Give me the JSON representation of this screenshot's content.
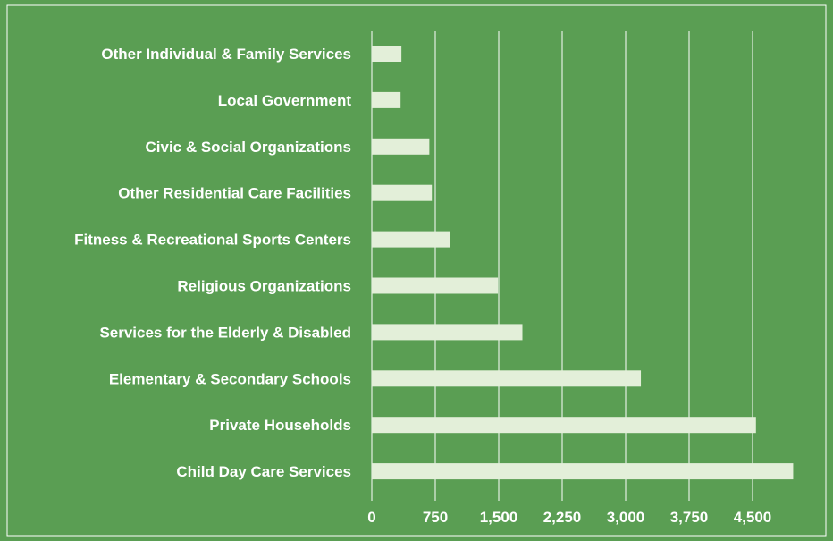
{
  "chart_data": {
    "type": "bar",
    "orientation": "horizontal",
    "categories": [
      "Other Individual & Family Services",
      "Local Government",
      "Civic & Social Organizations",
      "Other Residential Care Facilities",
      "Fitness & Recreational Sports Centers",
      "Religious Organizations",
      "Services for the Elderly & Disabled",
      "Elementary & Secondary Schools",
      "Private Households",
      "Child Day Care Services"
    ],
    "values": [
      350,
      340,
      680,
      710,
      920,
      1490,
      1780,
      3180,
      4540,
      4980
    ],
    "xlim": [
      0,
      5000
    ],
    "xticks": [
      "0",
      "750",
      "1,500",
      "2,250",
      "3,000",
      "3,750",
      "4,500"
    ],
    "tick_values": [
      0,
      750,
      1500,
      2250,
      3000,
      3750,
      4500
    ],
    "grid": true,
    "legend": "none",
    "title": "",
    "xlabel": "",
    "ylabel": "",
    "colors": {
      "background": "#5a9e53",
      "bar": "#e3efd9",
      "gridline": "#ffffff",
      "text": "#ffffff",
      "border": "#ffffff"
    }
  }
}
